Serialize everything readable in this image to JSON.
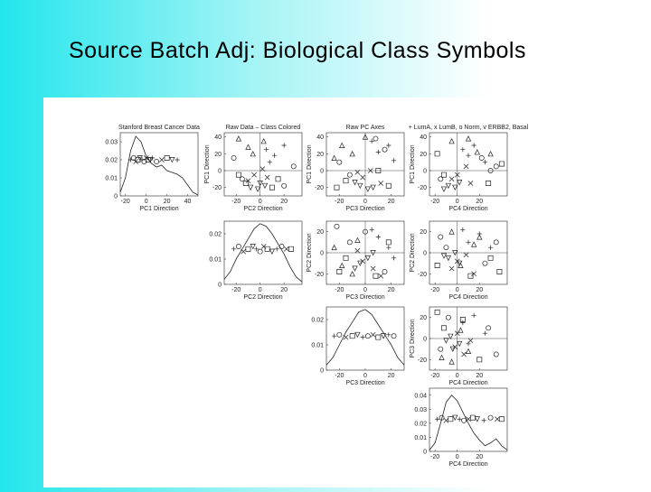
{
  "slide": {
    "title": "Source Batch Adj:  Biological Class Symbols"
  },
  "chart_data": [
    {
      "type": "density",
      "title": "Stanford Breast Cancer Data",
      "xlabel": "PC1 Direction",
      "xlim": [
        -25,
        50
      ],
      "xticks": [
        -20,
        0,
        20,
        40
      ],
      "ylim": [
        0,
        0.035
      ],
      "yticks": [
        0,
        0.01,
        0.02,
        0.03
      ],
      "x": [
        -25,
        -20,
        -15,
        -10,
        -5,
        0,
        5,
        10,
        15,
        20,
        25,
        30,
        35,
        40,
        45,
        50
      ],
      "values": [
        0.002,
        0.01,
        0.025,
        0.033,
        0.03,
        0.022,
        0.018,
        0.016,
        0.017,
        0.014,
        0.013,
        0.012,
        0.01,
        0.006,
        0.002,
        0.0005
      ],
      "points": {
        "x": [
          -15,
          -12,
          -10,
          -8,
          -6,
          -4,
          -2,
          0,
          2,
          4,
          6,
          10,
          15,
          20,
          25,
          30
        ],
        "y": [
          0.02,
          0.021,
          0.019,
          0.02,
          0.021,
          0.02,
          0.019,
          0.021,
          0.02,
          0.02,
          0.021,
          0.019,
          0.02,
          0.021,
          0.02,
          0.02
        ]
      }
    },
    {
      "type": "scatter",
      "title": "Raw Data – Class Colored",
      "xlabel": "PC2 Direction",
      "ylabel": "PC1 Direction",
      "xlim": [
        -30,
        35
      ],
      "xticks": [
        -20,
        0,
        20
      ],
      "ylim": [
        -30,
        45
      ],
      "yticks": [
        -20,
        0,
        20,
        40
      ],
      "series": [
        {
          "marker": "+",
          "x": [
            5,
            12,
            20,
            8
          ],
          "y": [
            25,
            18,
            30,
            10
          ]
        },
        {
          "marker": "x",
          "x": [
            -5,
            2,
            -10,
            6
          ],
          "y": [
            -5,
            2,
            -12,
            -8
          ]
        },
        {
          "marker": "o",
          "x": [
            -22,
            -15,
            28,
            20
          ],
          "y": [
            15,
            -10,
            5,
            -18
          ]
        },
        {
          "marker": "v",
          "x": [
            -8,
            0,
            4,
            -2
          ],
          "y": [
            -20,
            -15,
            -18,
            -22
          ]
        },
        {
          "marker": "square",
          "x": [
            -12,
            10,
            15,
            -18
          ],
          "y": [
            -15,
            -20,
            -10,
            -5
          ]
        },
        {
          "marker": "triangle",
          "x": [
            -18,
            -10,
            -6,
            3
          ],
          "y": [
            38,
            28,
            20,
            35
          ]
        }
      ]
    },
    {
      "type": "scatter",
      "title": "Raw PC Axes",
      "xlabel": "PC3 Direction",
      "ylabel": "PC1 Direction",
      "xlim": [
        -30,
        30
      ],
      "xticks": [
        -20,
        0,
        20
      ],
      "ylim": [
        -30,
        45
      ],
      "yticks": [
        -20,
        0,
        20,
        40
      ],
      "series": [
        {
          "marker": "+",
          "x": [
            10,
            18,
            22,
            5
          ],
          "y": [
            22,
            30,
            12,
            35
          ]
        },
        {
          "marker": "x",
          "x": [
            -2,
            4,
            12,
            -6
          ],
          "y": [
            -8,
            0,
            -15,
            -2
          ]
        },
        {
          "marker": "o",
          "x": [
            8,
            -20,
            15,
            -12
          ],
          "y": [
            38,
            10,
            25,
            -5
          ]
        },
        {
          "marker": "v",
          "x": [
            -4,
            2,
            -8,
            6
          ],
          "y": [
            -18,
            -22,
            -14,
            -20
          ]
        },
        {
          "marker": "square",
          "x": [
            -15,
            -22,
            18,
            10
          ],
          "y": [
            -12,
            -20,
            -18,
            0
          ]
        },
        {
          "marker": "triangle",
          "x": [
            -18,
            -10,
            -24,
            0
          ],
          "y": [
            30,
            20,
            15,
            40
          ]
        }
      ]
    },
    {
      "type": "scatter",
      "title": "+ LumA, x LumB, o Norm, v ERBB2, Basal",
      "xlabel": "PC4 Direction",
      "ylabel": "PC1 Direction",
      "xlim": [
        -25,
        45
      ],
      "xticks": [
        -20,
        0,
        20
      ],
      "ylim": [
        -30,
        45
      ],
      "yticks": [
        -20,
        0,
        20,
        40
      ],
      "series": [
        {
          "marker": "+",
          "x": [
            5,
            15,
            25,
            10
          ],
          "y": [
            25,
            30,
            10,
            18
          ]
        },
        {
          "marker": "x",
          "x": [
            0,
            8,
            -5,
            12
          ],
          "y": [
            -5,
            5,
            -10,
            -15
          ]
        },
        {
          "marker": "o",
          "x": [
            30,
            22,
            -15,
            35
          ],
          "y": [
            0,
            15,
            -10,
            5
          ]
        },
        {
          "marker": "v",
          "x": [
            -8,
            -2,
            -12,
            2
          ],
          "y": [
            -18,
            -20,
            -22,
            -14
          ]
        },
        {
          "marker": "square",
          "x": [
            -18,
            -12,
            28,
            40
          ],
          "y": [
            20,
            -5,
            -15,
            8
          ]
        },
        {
          "marker": "triangle",
          "x": [
            -5,
            18,
            30,
            10
          ],
          "y": [
            35,
            22,
            20,
            38
          ]
        }
      ]
    },
    {
      "type": "density",
      "xlabel": "PC2 Direction",
      "xlim": [
        -30,
        35
      ],
      "xticks": [
        -20,
        0,
        20
      ],
      "ylim": [
        0,
        0.025
      ],
      "yticks": [
        0,
        0.01,
        0.02
      ],
      "x": [
        -30,
        -25,
        -20,
        -15,
        -10,
        -5,
        0,
        5,
        10,
        15,
        20,
        25,
        30,
        35
      ],
      "values": [
        0.002,
        0.005,
        0.01,
        0.014,
        0.018,
        0.022,
        0.024,
        0.023,
        0.02,
        0.016,
        0.012,
        0.007,
        0.003,
        0.001
      ],
      "points": {
        "x": [
          -22,
          -18,
          -14,
          -10,
          -6,
          -3,
          0,
          3,
          6,
          10,
          14,
          18,
          22,
          26
        ],
        "y": [
          0.014,
          0.015,
          0.013,
          0.014,
          0.015,
          0.014,
          0.013,
          0.015,
          0.014,
          0.013,
          0.014,
          0.015,
          0.014,
          0.014
        ]
      }
    },
    {
      "type": "scatter",
      "xlabel": "PC3 Direction",
      "ylabel": "PC2 Direction",
      "xlim": [
        -30,
        30
      ],
      "xticks": [
        -20,
        0,
        20
      ],
      "ylim": [
        -30,
        30
      ],
      "yticks": [
        -20,
        0,
        20
      ],
      "series": [
        {
          "marker": "+",
          "x": [
            10,
            18,
            5,
            22
          ],
          "y": [
            15,
            5,
            22,
            -5
          ]
        },
        {
          "marker": "x",
          "x": [
            -2,
            6,
            12,
            -6
          ],
          "y": [
            -8,
            -15,
            -22,
            2
          ]
        },
        {
          "marker": "o",
          "x": [
            -22,
            -12,
            0,
            15
          ],
          "y": [
            25,
            10,
            20,
            -18
          ]
        },
        {
          "marker": "v",
          "x": [
            -4,
            2,
            -8,
            6
          ],
          "y": [
            -10,
            -5,
            -15,
            0
          ]
        },
        {
          "marker": "square",
          "x": [
            -15,
            -20,
            18,
            8
          ],
          "y": [
            -5,
            -18,
            10,
            -22
          ]
        },
        {
          "marker": "triangle",
          "x": [
            -18,
            -10,
            -24,
            -6
          ],
          "y": [
            -12,
            -20,
            5,
            12
          ]
        }
      ]
    },
    {
      "type": "scatter",
      "xlabel": "PC4 Direction",
      "ylabel": "PC2 Direction",
      "xlim": [
        -25,
        45
      ],
      "xticks": [
        -20,
        0,
        20
      ],
      "ylim": [
        -30,
        30
      ],
      "yticks": [
        -20,
        0,
        20
      ],
      "series": [
        {
          "marker": "+",
          "x": [
            10,
            20,
            30,
            5
          ],
          "y": [
            10,
            18,
            5,
            22
          ]
        },
        {
          "marker": "x",
          "x": [
            0,
            8,
            -5,
            15
          ],
          "y": [
            -8,
            -2,
            -15,
            -20
          ]
        },
        {
          "marker": "o",
          "x": [
            -15,
            -10,
            25,
            35
          ],
          "y": [
            15,
            5,
            -10,
            10
          ]
        },
        {
          "marker": "v",
          "x": [
            -8,
            -2,
            2,
            -12
          ],
          "y": [
            -5,
            0,
            -10,
            -3
          ]
        },
        {
          "marker": "square",
          "x": [
            -18,
            30,
            38,
            12
          ],
          "y": [
            -12,
            -5,
            -18,
            -22
          ]
        },
        {
          "marker": "triangle",
          "x": [
            -5,
            15,
            20,
            3
          ],
          "y": [
            20,
            8,
            15,
            -12
          ]
        }
      ]
    },
    {
      "type": "density",
      "xlabel": "PC3 Direction",
      "xlim": [
        -30,
        30
      ],
      "xticks": [
        -20,
        0,
        20
      ],
      "ylim": [
        0,
        0.025
      ],
      "yticks": [
        0,
        0.01,
        0.02
      ],
      "x": [
        -30,
        -25,
        -20,
        -15,
        -10,
        -5,
        0,
        5,
        10,
        15,
        20,
        25,
        30
      ],
      "values": [
        0.002,
        0.005,
        0.01,
        0.015,
        0.019,
        0.023,
        0.024,
        0.022,
        0.018,
        0.014,
        0.01,
        0.005,
        0.002
      ],
      "points": {
        "x": [
          -24,
          -20,
          -15,
          -10,
          -6,
          -2,
          2,
          6,
          10,
          14,
          18,
          22
        ],
        "y": [
          0.0135,
          0.014,
          0.013,
          0.0135,
          0.014,
          0.013,
          0.0135,
          0.014,
          0.013,
          0.0135,
          0.014,
          0.0135
        ]
      }
    },
    {
      "type": "scatter",
      "xlabel": "PC4 Direction",
      "ylabel": "PC3 Direction",
      "xlim": [
        -25,
        45
      ],
      "xticks": [
        -20,
        0,
        20
      ],
      "ylim": [
        -30,
        30
      ],
      "yticks": [
        -20,
        0,
        20
      ],
      "series": [
        {
          "marker": "+",
          "x": [
            5,
            15,
            25,
            10
          ],
          "y": [
            15,
            22,
            5,
            -5
          ]
        },
        {
          "marker": "x",
          "x": [
            -2,
            6,
            12,
            0
          ],
          "y": [
            -8,
            -15,
            -2,
            5
          ]
        },
        {
          "marker": "o",
          "x": [
            -15,
            28,
            35,
            -8
          ],
          "y": [
            -10,
            10,
            -15,
            20
          ]
        },
        {
          "marker": "v",
          "x": [
            -10,
            -4,
            2,
            -6
          ],
          "y": [
            -2,
            -10,
            -5,
            2
          ]
        },
        {
          "marker": "square",
          "x": [
            -18,
            -12,
            20,
            5
          ],
          "y": [
            25,
            10,
            -20,
            18
          ]
        },
        {
          "marker": "triangle",
          "x": [
            -14,
            -5,
            10,
            3
          ],
          "y": [
            -18,
            -22,
            -12,
            8
          ]
        }
      ]
    },
    {
      "type": "density",
      "xlabel": "PC4 Direction",
      "xlim": [
        -25,
        45
      ],
      "xticks": [
        -20,
        0,
        20
      ],
      "ylim": [
        0,
        0.045
      ],
      "yticks": [
        0,
        0.01,
        0.02,
        0.03,
        0.04
      ],
      "x": [
        -25,
        -20,
        -15,
        -10,
        -5,
        0,
        5,
        10,
        15,
        20,
        25,
        30,
        35,
        40,
        45
      ],
      "values": [
        0.001,
        0.006,
        0.02,
        0.035,
        0.04,
        0.036,
        0.028,
        0.02,
        0.013,
        0.008,
        0.004,
        0.006,
        0.009,
        0.004,
        0.001
      ],
      "points": {
        "x": [
          -18,
          -14,
          -10,
          -6,
          -2,
          2,
          6,
          10,
          14,
          18,
          24,
          30,
          36,
          40
        ],
        "y": [
          0.023,
          0.024,
          0.022,
          0.023,
          0.024,
          0.023,
          0.022,
          0.023,
          0.024,
          0.023,
          0.022,
          0.024,
          0.023,
          0.023
        ]
      }
    }
  ]
}
